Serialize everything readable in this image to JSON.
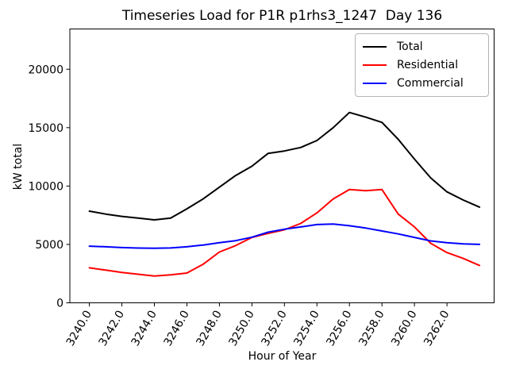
{
  "chart_data": {
    "type": "line",
    "title": "Timeseries Load for P1R p1rhs3_1247  Day 136",
    "xlabel": "Hour of Year",
    "ylabel": "kW total",
    "grid": false,
    "legend_position": "upper right",
    "xlim": [
      3238.8,
      3264.9
    ],
    "ylim": [
      0,
      23450
    ],
    "x_ticks": [
      3240,
      3242,
      3244,
      3246,
      3248,
      3250,
      3252,
      3254,
      3256,
      3258,
      3260,
      3262
    ],
    "x_tick_labels": [
      "3240.0",
      "3242.0",
      "3244.0",
      "3246.0",
      "3248.0",
      "3250.0",
      "3252.0",
      "3254.0",
      "3256.0",
      "3258.0",
      "3260.0",
      "3262.0"
    ],
    "y_ticks": [
      0,
      5000,
      10000,
      15000,
      20000
    ],
    "y_tick_labels": [
      "0",
      "5000",
      "10000",
      "15000",
      "20000"
    ],
    "x": [
      3240,
      3241,
      3242,
      3243,
      3244,
      3245,
      3246,
      3247,
      3248,
      3249,
      3250,
      3251,
      3252,
      3253,
      3254,
      3255,
      3256,
      3257,
      3258,
      3259,
      3260,
      3261,
      3262,
      3263,
      3264
    ],
    "series": [
      {
        "name": "Total",
        "color": "#000000",
        "values": [
          7850,
          7600,
          7400,
          7250,
          7100,
          7250,
          8050,
          8900,
          9900,
          10900,
          11700,
          12800,
          13000,
          13300,
          13900,
          15000,
          16300,
          15900,
          15450,
          14000,
          12300,
          10700,
          9500,
          8800,
          8200
        ]
      },
      {
        "name": "Residential",
        "color": "#ff0000",
        "values": [
          3000,
          2800,
          2600,
          2450,
          2300,
          2400,
          2550,
          3300,
          4350,
          4900,
          5600,
          5950,
          6250,
          6800,
          7700,
          8900,
          9700,
          9600,
          9700,
          7600,
          6500,
          5100,
          4300,
          3800,
          3200
        ]
      },
      {
        "name": "Commercial",
        "color": "#0000ff",
        "values": [
          4850,
          4800,
          4730,
          4690,
          4670,
          4700,
          4800,
          4950,
          5150,
          5320,
          5620,
          6050,
          6300,
          6500,
          6700,
          6750,
          6600,
          6400,
          6150,
          5900,
          5600,
          5300,
          5150,
          5050,
          5000
        ]
      }
    ]
  }
}
